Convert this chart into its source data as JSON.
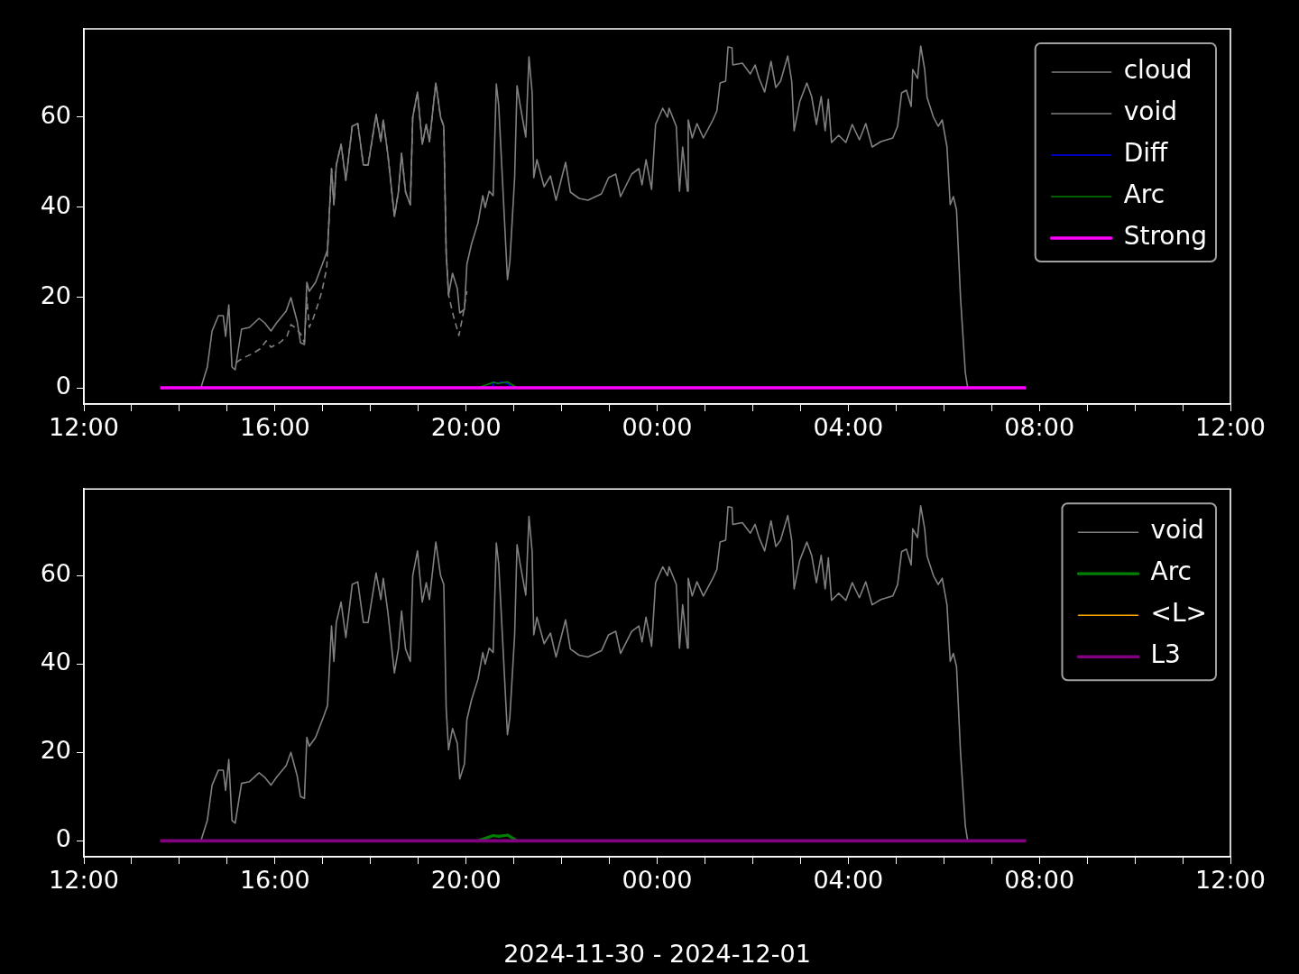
{
  "chart_data": [
    {
      "type": "line",
      "xlim": [
        "2024-11-30T12:00",
        "2024-12-01T12:00"
      ],
      "ylim": [
        -3.6,
        79.6
      ],
      "xticks": [
        {
          "value": "2024-11-30T12:00",
          "label": "12:00"
        },
        {
          "value": "2024-11-30T13:00",
          "label": null
        },
        {
          "value": "2024-11-30T14:00",
          "label": null
        },
        {
          "value": "2024-11-30T15:00",
          "label": null
        },
        {
          "value": "2024-11-30T16:00",
          "label": "16:00"
        },
        {
          "value": "2024-11-30T17:00",
          "label": null
        },
        {
          "value": "2024-11-30T18:00",
          "label": null
        },
        {
          "value": "2024-11-30T19:00",
          "label": null
        },
        {
          "value": "2024-11-30T20:00",
          "label": "20:00"
        },
        {
          "value": "2024-11-30T21:00",
          "label": null
        },
        {
          "value": "2024-11-30T22:00",
          "label": null
        },
        {
          "value": "2024-11-30T23:00",
          "label": null
        },
        {
          "value": "2024-12-01T00:00",
          "label": "00:00"
        },
        {
          "value": "2024-12-01T01:00",
          "label": null
        },
        {
          "value": "2024-12-01T02:00",
          "label": null
        },
        {
          "value": "2024-12-01T03:00",
          "label": null
        },
        {
          "value": "2024-12-01T04:00",
          "label": "04:00"
        },
        {
          "value": "2024-12-01T05:00",
          "label": null
        },
        {
          "value": "2024-12-01T06:00",
          "label": null
        },
        {
          "value": "2024-12-01T07:00",
          "label": null
        },
        {
          "value": "2024-12-01T08:00",
          "label": "08:00"
        },
        {
          "value": "2024-12-01T09:00",
          "label": null
        },
        {
          "value": "2024-12-01T10:00",
          "label": null
        },
        {
          "value": "2024-12-01T11:00",
          "label": null
        },
        {
          "value": "2024-12-01T12:00",
          "label": "12:00"
        }
      ],
      "yticks": [
        0,
        20,
        40,
        60
      ],
      "legend": "top right",
      "series": [
        {
          "name": "cloud",
          "color": "#808080",
          "line_style": "dashed",
          "x": [
            "2024-11-30T15:11",
            "2024-11-30T15:20",
            "2024-11-30T15:32",
            "2024-11-30T15:41",
            "2024-11-30T15:49",
            "2024-11-30T15:55",
            "2024-11-30T16:06",
            "2024-11-30T16:15",
            "2024-11-30T16:20",
            "2024-11-30T16:25",
            "2024-11-30T16:32",
            "2024-11-30T16:37",
            "2024-11-30T16:40",
            "2024-11-30T16:43",
            "2024-11-30T16:48",
            "2024-11-30T16:53",
            "2024-11-30T16:59",
            "2024-11-30T17:05",
            "2024-11-30T17:11",
            "2024-11-30T17:14",
            "2024-11-30T17:17",
            "2024-11-30T17:23",
            "2024-11-30T17:29",
            "2024-11-30T17:37",
            "2024-11-30T17:44",
            "2024-11-30T17:51",
            "2024-11-30T17:57",
            "2024-11-30T18:07",
            "2024-11-30T18:13",
            "2024-11-30T18:16",
            "2024-11-30T18:22",
            "2024-11-30T18:30",
            "2024-11-30T18:35",
            "2024-11-30T18:39",
            "2024-11-30T18:44",
            "2024-11-30T18:50",
            "2024-11-30T18:53",
            "2024-11-30T18:59",
            "2024-11-30T19:05",
            "2024-11-30T19:10",
            "2024-11-30T19:14",
            "2024-11-30T19:22",
            "2024-11-30T19:28",
            "2024-11-30T19:32",
            "2024-11-30T19:35",
            "2024-11-30T19:38",
            "2024-11-30T19:44",
            "2024-11-30T19:51",
            "2024-11-30T19:56",
            "2024-11-30T20:01"
          ],
          "values": [
            5.6,
            6.6,
            7.6,
            8.6,
            10.4,
            9,
            10,
            11.4,
            14,
            13.4,
            12,
            10,
            20,
            13.4,
            15.4,
            18,
            21.4,
            26.6,
            48.6,
            40.6,
            49.4,
            54,
            46,
            58,
            58.6,
            49.4,
            49.4,
            60.6,
            54.6,
            59.4,
            51.4,
            38,
            43.4,
            52,
            43.4,
            40.6,
            60,
            65.6,
            54,
            58.4,
            54.6,
            67.6,
            60,
            58,
            30,
            20.6,
            16,
            11.6,
            16,
            21.4
          ]
        },
        {
          "name": "void",
          "color": "#808080",
          "x": [
            "2024-11-30T13:36",
            "2024-11-30T14:27",
            "2024-11-30T14:35",
            "2024-11-30T14:41",
            "2024-11-30T14:49",
            "2024-11-30T14:55",
            "2024-11-30T14:58",
            "2024-11-30T15:02",
            "2024-11-30T15:06",
            "2024-11-30T15:10",
            "2024-11-30T15:18",
            "2024-11-30T15:28",
            "2024-11-30T15:40",
            "2024-11-30T15:47",
            "2024-11-30T15:55",
            "2024-11-30T16:02",
            "2024-11-30T16:14",
            "2024-11-30T16:20",
            "2024-11-30T16:28",
            "2024-11-30T16:32",
            "2024-11-30T16:37",
            "2024-11-30T16:40",
            "2024-11-30T16:43",
            "2024-11-30T16:51",
            "2024-11-30T17:02",
            "2024-11-30T17:06",
            "2024-11-30T17:11",
            "2024-11-30T17:14",
            "2024-11-30T17:17",
            "2024-11-30T17:23",
            "2024-11-30T17:29",
            "2024-11-30T17:37",
            "2024-11-30T17:44",
            "2024-11-30T17:51",
            "2024-11-30T17:57",
            "2024-11-30T18:07",
            "2024-11-30T18:13",
            "2024-11-30T18:16",
            "2024-11-30T18:22",
            "2024-11-30T18:30",
            "2024-11-30T18:35",
            "2024-11-30T18:39",
            "2024-11-30T18:44",
            "2024-11-30T18:50",
            "2024-11-30T18:53",
            "2024-11-30T18:59",
            "2024-11-30T19:05",
            "2024-11-30T19:10",
            "2024-11-30T19:14",
            "2024-11-30T19:22",
            "2024-11-30T19:28",
            "2024-11-30T19:32",
            "2024-11-30T19:35",
            "2024-11-30T19:38",
            "2024-11-30T19:43",
            "2024-11-30T19:49",
            "2024-11-30T19:52",
            "2024-11-30T19:58",
            "2024-11-30T20:01",
            "2024-11-30T20:07",
            "2024-11-30T20:15",
            "2024-11-30T20:21",
            "2024-11-30T20:24",
            "2024-11-30T20:29",
            "2024-11-30T20:34",
            "2024-11-30T20:38",
            "2024-11-30T20:41",
            "2024-11-30T20:52",
            "2024-11-30T20:55",
            "2024-11-30T21:01",
            "2024-11-30T21:04",
            "2024-11-30T21:08",
            "2024-11-30T21:15",
            "2024-11-30T21:19",
            "2024-11-30T21:23",
            "2024-11-30T21:25",
            "2024-11-30T21:29",
            "2024-11-30T21:38",
            "2024-11-30T21:46",
            "2024-11-30T21:53",
            "2024-11-30T22:05",
            "2024-11-30T22:11",
            "2024-11-30T22:22",
            "2024-11-30T22:33",
            "2024-11-30T22:50",
            "2024-11-30T22:59",
            "2024-11-30T23:08",
            "2024-11-30T23:14",
            "2024-11-30T23:28",
            "2024-11-30T23:37",
            "2024-11-30T23:41",
            "2024-11-30T23:46",
            "2024-11-30T23:53",
            "2024-11-30T23:58",
            "2024-12-01T00:07",
            "2024-12-01T00:13",
            "2024-12-01T00:15",
            "2024-12-01T00:24",
            "2024-12-01T00:28",
            "2024-12-01T00:32",
            "2024-12-01T00:38",
            "2024-12-01T00:39",
            "2024-12-01T00:44",
            "2024-12-01T00:50",
            "2024-12-01T00:58",
            "2024-12-01T01:10",
            "2024-12-01T01:15",
            "2024-12-01T01:19",
            "2024-12-01T01:26",
            "2024-12-01T01:29",
            "2024-12-01T01:34",
            "2024-12-01T01:35",
            "2024-12-01T01:47",
            "2024-12-01T01:57",
            "2024-12-01T02:03",
            "2024-12-01T02:08",
            "2024-12-01T02:15",
            "2024-12-01T02:23",
            "2024-12-01T02:29",
            "2024-12-01T02:35",
            "2024-12-01T02:44",
            "2024-12-01T02:49",
            "2024-12-01T02:52",
            "2024-12-01T02:59",
            "2024-12-01T03:08",
            "2024-12-01T03:14",
            "2024-12-01T03:20",
            "2024-12-01T03:26",
            "2024-12-01T03:31",
            "2024-12-01T03:35",
            "2024-12-01T03:39",
            "2024-12-01T03:48",
            "2024-12-01T03:57",
            "2024-12-01T04:05",
            "2024-12-01T04:14",
            "2024-12-01T04:22",
            "2024-12-01T04:30",
            "2024-12-01T04:41",
            "2024-12-01T04:56",
            "2024-12-01T05:02",
            "2024-12-01T05:07",
            "2024-12-01T05:13",
            "2024-12-01T05:19",
            "2024-12-01T05:21",
            "2024-12-01T05:27",
            "2024-12-01T05:31",
            "2024-12-01T05:36",
            "2024-12-01T05:39",
            "2024-12-01T05:47",
            "2024-12-01T05:53",
            "2024-12-01T05:58",
            "2024-12-01T06:04",
            "2024-12-01T06:08",
            "2024-12-01T06:12",
            "2024-12-01T06:16",
            "2024-12-01T06:21",
            "2024-12-01T06:27",
            "2024-12-01T06:30",
            "2024-12-01T07:43"
          ],
          "values": [
            0,
            0,
            4.6,
            12.6,
            16,
            16,
            11.4,
            18.4,
            4.6,
            4,
            13,
            13.4,
            15.4,
            14.4,
            12.6,
            14.4,
            17,
            20,
            14.6,
            10,
            9.6,
            23.4,
            21.4,
            23.4,
            28.6,
            30.6,
            48.6,
            40.6,
            49.4,
            54,
            46,
            58,
            58.6,
            49.4,
            49.4,
            60.6,
            54.6,
            59.4,
            51.4,
            38,
            43.4,
            52,
            43.4,
            40.6,
            60,
            65.6,
            54,
            58.4,
            54.6,
            67.6,
            60,
            58,
            30,
            20.6,
            25.4,
            22,
            16.6,
            17.4,
            27.4,
            32,
            36.6,
            42.6,
            40,
            43.6,
            42.6,
            67.4,
            62.6,
            24,
            28,
            46.6,
            67,
            62.6,
            55.6,
            73.4,
            65.4,
            46.6,
            50.6,
            44.6,
            47,
            41.6,
            50,
            43.4,
            42,
            41.6,
            43,
            46.6,
            47.4,
            42.4,
            47.4,
            48.6,
            45,
            50.6,
            44,
            58.4,
            62,
            60,
            62,
            58,
            43.6,
            53.4,
            43.6,
            59.4,
            55.4,
            58.6,
            55.4,
            59.4,
            61.4,
            67.6,
            68,
            75.6,
            75.4,
            71.6,
            72,
            69.6,
            71.6,
            68.6,
            65.6,
            72.4,
            66.6,
            68,
            73.6,
            68,
            57,
            63.4,
            67.6,
            64.6,
            58.4,
            64.6,
            57,
            64,
            54.4,
            56,
            54.4,
            58.4,
            55,
            58.6,
            53.4,
            54.6,
            55.4,
            58,
            65.4,
            66,
            62.4,
            70.6,
            68.6,
            75.8,
            70.6,
            64.4,
            60,
            58,
            59.4,
            53.4,
            40.6,
            42.4,
            39.4,
            20,
            3.4,
            0,
            0
          ]
        },
        {
          "name": "Diff",
          "color": "#0000ff",
          "x": [
            "2024-11-30T20:32",
            "2024-11-30T20:35",
            "2024-11-30T20:40",
            "2024-11-30T20:44",
            "2024-11-30T20:52",
            "2024-11-30T20:58"
          ],
          "values": [
            0,
            1.3,
            0.9,
            1.3,
            0.9,
            0
          ]
        },
        {
          "name": "Arc",
          "color": "#008000",
          "x": [
            "2024-11-30T20:15",
            "2024-11-30T20:34",
            "2024-11-30T20:41",
            "2024-11-30T20:52",
            "2024-11-30T21:04"
          ],
          "values": [
            0,
            1.2,
            1,
            1.3,
            0
          ]
        },
        {
          "name": "Strong",
          "color": "#ff00ff",
          "x": [
            "2024-11-30T13:36",
            "2024-12-01T07:43"
          ],
          "values": [
            0,
            0
          ]
        }
      ]
    },
    {
      "type": "line",
      "xlim": [
        "2024-11-30T12:00",
        "2024-12-01T12:00"
      ],
      "ylim": [
        -3.6,
        79.6
      ],
      "xlabel": "2024-11-30 - 2024-12-01",
      "xticks": [
        {
          "value": "2024-11-30T12:00",
          "label": "12:00"
        },
        {
          "value": "2024-11-30T13:00",
          "label": null
        },
        {
          "value": "2024-11-30T14:00",
          "label": null
        },
        {
          "value": "2024-11-30T15:00",
          "label": null
        },
        {
          "value": "2024-11-30T16:00",
          "label": "16:00"
        },
        {
          "value": "2024-11-30T17:00",
          "label": null
        },
        {
          "value": "2024-11-30T18:00",
          "label": null
        },
        {
          "value": "2024-11-30T19:00",
          "label": null
        },
        {
          "value": "2024-11-30T20:00",
          "label": "20:00"
        },
        {
          "value": "2024-11-30T21:00",
          "label": null
        },
        {
          "value": "2024-11-30T22:00",
          "label": null
        },
        {
          "value": "2024-11-30T23:00",
          "label": null
        },
        {
          "value": "2024-12-01T00:00",
          "label": "00:00"
        },
        {
          "value": "2024-12-01T01:00",
          "label": null
        },
        {
          "value": "2024-12-01T02:00",
          "label": null
        },
        {
          "value": "2024-12-01T03:00",
          "label": null
        },
        {
          "value": "2024-12-01T04:00",
          "label": "04:00"
        },
        {
          "value": "2024-12-01T05:00",
          "label": null
        },
        {
          "value": "2024-12-01T06:00",
          "label": null
        },
        {
          "value": "2024-12-01T07:00",
          "label": null
        },
        {
          "value": "2024-12-01T08:00",
          "label": "08:00"
        },
        {
          "value": "2024-12-01T09:00",
          "label": null
        },
        {
          "value": "2024-12-01T10:00",
          "label": null
        },
        {
          "value": "2024-12-01T11:00",
          "label": null
        },
        {
          "value": "2024-12-01T12:00",
          "label": "12:00"
        }
      ],
      "yticks": [
        0,
        20,
        40,
        60
      ],
      "legend": "top right",
      "series": [
        {
          "name": "void",
          "color": "#808080",
          "x": [
            "2024-11-30T13:36",
            "2024-11-30T14:27",
            "2024-11-30T14:35",
            "2024-11-30T14:41",
            "2024-11-30T14:49",
            "2024-11-30T14:55",
            "2024-11-30T14:58",
            "2024-11-30T15:02",
            "2024-11-30T15:06",
            "2024-11-30T15:10",
            "2024-11-30T15:18",
            "2024-11-30T15:28",
            "2024-11-30T15:40",
            "2024-11-30T15:47",
            "2024-11-30T15:55",
            "2024-11-30T16:02",
            "2024-11-30T16:14",
            "2024-11-30T16:20",
            "2024-11-30T16:28",
            "2024-11-30T16:32",
            "2024-11-30T16:37",
            "2024-11-30T16:40",
            "2024-11-30T16:43",
            "2024-11-30T16:51",
            "2024-11-30T17:02",
            "2024-11-30T17:06",
            "2024-11-30T17:11",
            "2024-11-30T17:14",
            "2024-11-30T17:17",
            "2024-11-30T17:23",
            "2024-11-30T17:29",
            "2024-11-30T17:37",
            "2024-11-30T17:44",
            "2024-11-30T17:51",
            "2024-11-30T17:57",
            "2024-11-30T18:07",
            "2024-11-30T18:13",
            "2024-11-30T18:16",
            "2024-11-30T18:22",
            "2024-11-30T18:30",
            "2024-11-30T18:35",
            "2024-11-30T18:39",
            "2024-11-30T18:44",
            "2024-11-30T18:50",
            "2024-11-30T18:53",
            "2024-11-30T18:59",
            "2024-11-30T19:05",
            "2024-11-30T19:10",
            "2024-11-30T19:14",
            "2024-11-30T19:22",
            "2024-11-30T19:28",
            "2024-11-30T19:32",
            "2024-11-30T19:35",
            "2024-11-30T19:38",
            "2024-11-30T19:43",
            "2024-11-30T19:49",
            "2024-11-30T19:52",
            "2024-11-30T19:58",
            "2024-11-30T20:01",
            "2024-11-30T20:07",
            "2024-11-30T20:15",
            "2024-11-30T20:21",
            "2024-11-30T20:24",
            "2024-11-30T20:29",
            "2024-11-30T20:34",
            "2024-11-30T20:38",
            "2024-11-30T20:41",
            "2024-11-30T20:52",
            "2024-11-30T20:55",
            "2024-11-30T21:01",
            "2024-11-30T21:04",
            "2024-11-30T21:08",
            "2024-11-30T21:15",
            "2024-11-30T21:19",
            "2024-11-30T21:23",
            "2024-11-30T21:25",
            "2024-11-30T21:29",
            "2024-11-30T21:38",
            "2024-11-30T21:46",
            "2024-11-30T21:53",
            "2024-11-30T22:05",
            "2024-11-30T22:11",
            "2024-11-30T22:22",
            "2024-11-30T22:33",
            "2024-11-30T22:50",
            "2024-11-30T22:59",
            "2024-11-30T23:08",
            "2024-11-30T23:14",
            "2024-11-30T23:28",
            "2024-11-30T23:37",
            "2024-11-30T23:41",
            "2024-11-30T23:46",
            "2024-11-30T23:53",
            "2024-11-30T23:58",
            "2024-12-01T00:07",
            "2024-12-01T00:13",
            "2024-12-01T00:15",
            "2024-12-01T00:24",
            "2024-12-01T00:28",
            "2024-12-01T00:32",
            "2024-12-01T00:38",
            "2024-12-01T00:39",
            "2024-12-01T00:44",
            "2024-12-01T00:50",
            "2024-12-01T00:58",
            "2024-12-01T01:10",
            "2024-12-01T01:15",
            "2024-12-01T01:19",
            "2024-12-01T01:26",
            "2024-12-01T01:29",
            "2024-12-01T01:34",
            "2024-12-01T01:35",
            "2024-12-01T01:47",
            "2024-12-01T01:57",
            "2024-12-01T02:03",
            "2024-12-01T02:08",
            "2024-12-01T02:15",
            "2024-12-01T02:23",
            "2024-12-01T02:29",
            "2024-12-01T02:35",
            "2024-12-01T02:44",
            "2024-12-01T02:49",
            "2024-12-01T02:52",
            "2024-12-01T02:59",
            "2024-12-01T03:08",
            "2024-12-01T03:14",
            "2024-12-01T03:20",
            "2024-12-01T03:26",
            "2024-12-01T03:31",
            "2024-12-01T03:35",
            "2024-12-01T03:39",
            "2024-12-01T03:48",
            "2024-12-01T03:57",
            "2024-12-01T04:05",
            "2024-12-01T04:14",
            "2024-12-01T04:22",
            "2024-12-01T04:30",
            "2024-12-01T04:41",
            "2024-12-01T04:56",
            "2024-12-01T05:02",
            "2024-12-01T05:07",
            "2024-12-01T05:13",
            "2024-12-01T05:19",
            "2024-12-01T05:21",
            "2024-12-01T05:27",
            "2024-12-01T05:31",
            "2024-12-01T05:36",
            "2024-12-01T05:39",
            "2024-12-01T05:47",
            "2024-12-01T05:53",
            "2024-12-01T05:58",
            "2024-12-01T06:04",
            "2024-12-01T06:08",
            "2024-12-01T06:12",
            "2024-12-01T06:16",
            "2024-12-01T06:21",
            "2024-12-01T06:27",
            "2024-12-01T06:30",
            "2024-12-01T07:43"
          ],
          "values": [
            0,
            0,
            4.6,
            12.6,
            16,
            16,
            11.4,
            18.4,
            4.6,
            4,
            13,
            13.4,
            15.4,
            14.4,
            12.6,
            14.4,
            17,
            20,
            14.6,
            10,
            9.6,
            23.4,
            21.4,
            23.4,
            28.6,
            30.6,
            48.6,
            40.6,
            49.4,
            54,
            46,
            58,
            58.6,
            49.4,
            49.4,
            60.6,
            54.6,
            59.4,
            51.4,
            38,
            43.4,
            52,
            43.4,
            40.6,
            60,
            65.6,
            54,
            58.4,
            54.6,
            67.6,
            60,
            58,
            30,
            20.6,
            25.4,
            22,
            14,
            17.4,
            27.4,
            32,
            36.6,
            42.6,
            40,
            43.6,
            42.6,
            67.4,
            62.6,
            24,
            28,
            46.6,
            67,
            62.6,
            55.6,
            73.4,
            65.4,
            46.6,
            50.6,
            44.6,
            47,
            41.6,
            50,
            43.4,
            42,
            41.6,
            43,
            46.6,
            47.4,
            42.4,
            47.4,
            48.6,
            45,
            50.6,
            44,
            58.4,
            62,
            60,
            62,
            58,
            43.6,
            53.4,
            43.6,
            59.4,
            55.4,
            58.6,
            55.4,
            59.4,
            61.4,
            67.6,
            68,
            75.6,
            75.4,
            71.6,
            72,
            69.6,
            71.6,
            68.6,
            65.6,
            72.4,
            66.6,
            68,
            73.6,
            68,
            57,
            63.4,
            67.6,
            64.6,
            58.4,
            64.6,
            57,
            64,
            54.4,
            56,
            54.4,
            58.4,
            55,
            58.6,
            53.4,
            54.6,
            55.4,
            58,
            65.4,
            66,
            62.4,
            70.6,
            68.6,
            75.8,
            70.6,
            64.4,
            60,
            58,
            59.4,
            53.4,
            40.6,
            42.4,
            39.4,
            20,
            3.4,
            0,
            0
          ]
        },
        {
          "name": "Arc",
          "color": "#008000",
          "x": [
            "2024-11-30T20:15",
            "2024-11-30T20:34",
            "2024-11-30T20:41",
            "2024-11-30T20:52",
            "2024-11-30T21:04"
          ],
          "values": [
            0,
            1.2,
            1,
            1.3,
            0
          ]
        },
        {
          "name": "<L>",
          "color": "#ffa500"
        },
        {
          "name": "L3",
          "color": "#800080",
          "x": [
            "2024-11-30T13:36",
            "2024-12-01T07:43"
          ],
          "values": [
            0,
            0
          ]
        }
      ]
    }
  ]
}
